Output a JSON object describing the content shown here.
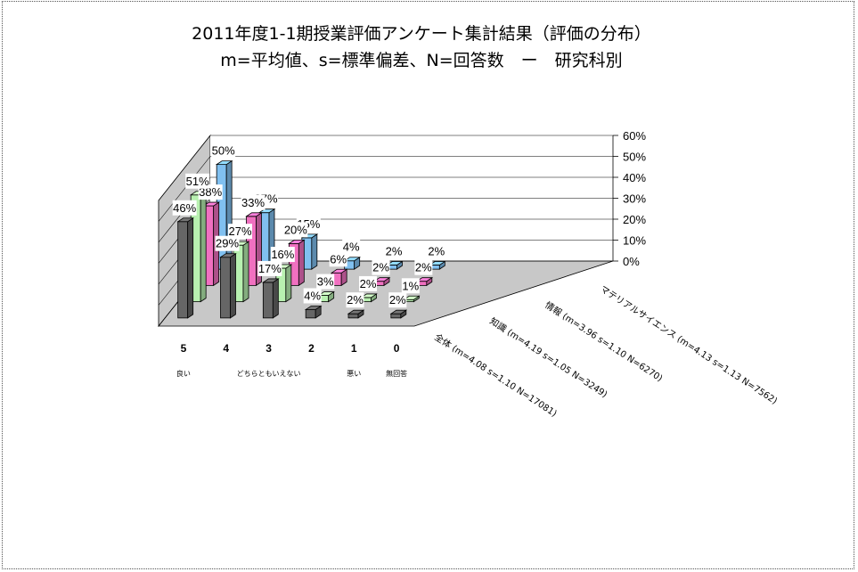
{
  "chart_data": {
    "type": "bar",
    "title": "2011年度1-1期授業評価アンケート集計結果（評価の分布）",
    "subtitle": "m=平均値、s=標準偏差、N=回答数　ー　研究科別",
    "categories": [
      "5",
      "4",
      "3",
      "2",
      "1",
      "0"
    ],
    "category_sublabels": [
      "良い",
      "",
      "どちらともいえない",
      "",
      "悪い",
      "無回答"
    ],
    "ylim": [
      0,
      60
    ],
    "yticks": [
      "60%",
      "50%",
      "40%",
      "30%",
      "20%",
      "10%",
      "0%"
    ],
    "series": [
      {
        "name": "全体 (m=4.08 s=1.10 N=17081)",
        "values": [
          46,
          29,
          17,
          4,
          2,
          2
        ],
        "labels": [
          "46%",
          "29%",
          "17%",
          "4%",
          "2%",
          "2%"
        ],
        "color": "#666666"
      },
      {
        "name": "知識 (m=4.19 s=1.05 N=3249)",
        "values": [
          51,
          27,
          16,
          3,
          2,
          1
        ],
        "labels": [
          "51%",
          "27%",
          "16%",
          "3%",
          "2%",
          "1%"
        ],
        "color": "#b8f0b0"
      },
      {
        "name": "情報 (m=3.96 s=1.10 N=6270)",
        "values": [
          38,
          33,
          20,
          6,
          2,
          2
        ],
        "labels": [
          "38%",
          "33%",
          "20%",
          "6%",
          "2%",
          "2%"
        ],
        "color": "#f070c0"
      },
      {
        "name": "マテリアルサイエンス (m=4.13 s=1.13 N=7562)",
        "values": [
          50,
          27,
          15,
          4,
          2,
          2
        ],
        "labels": [
          "50%",
          "27%",
          "15%",
          "4%",
          "2%",
          "2%"
        ],
        "color": "#80c0f0"
      }
    ]
  }
}
